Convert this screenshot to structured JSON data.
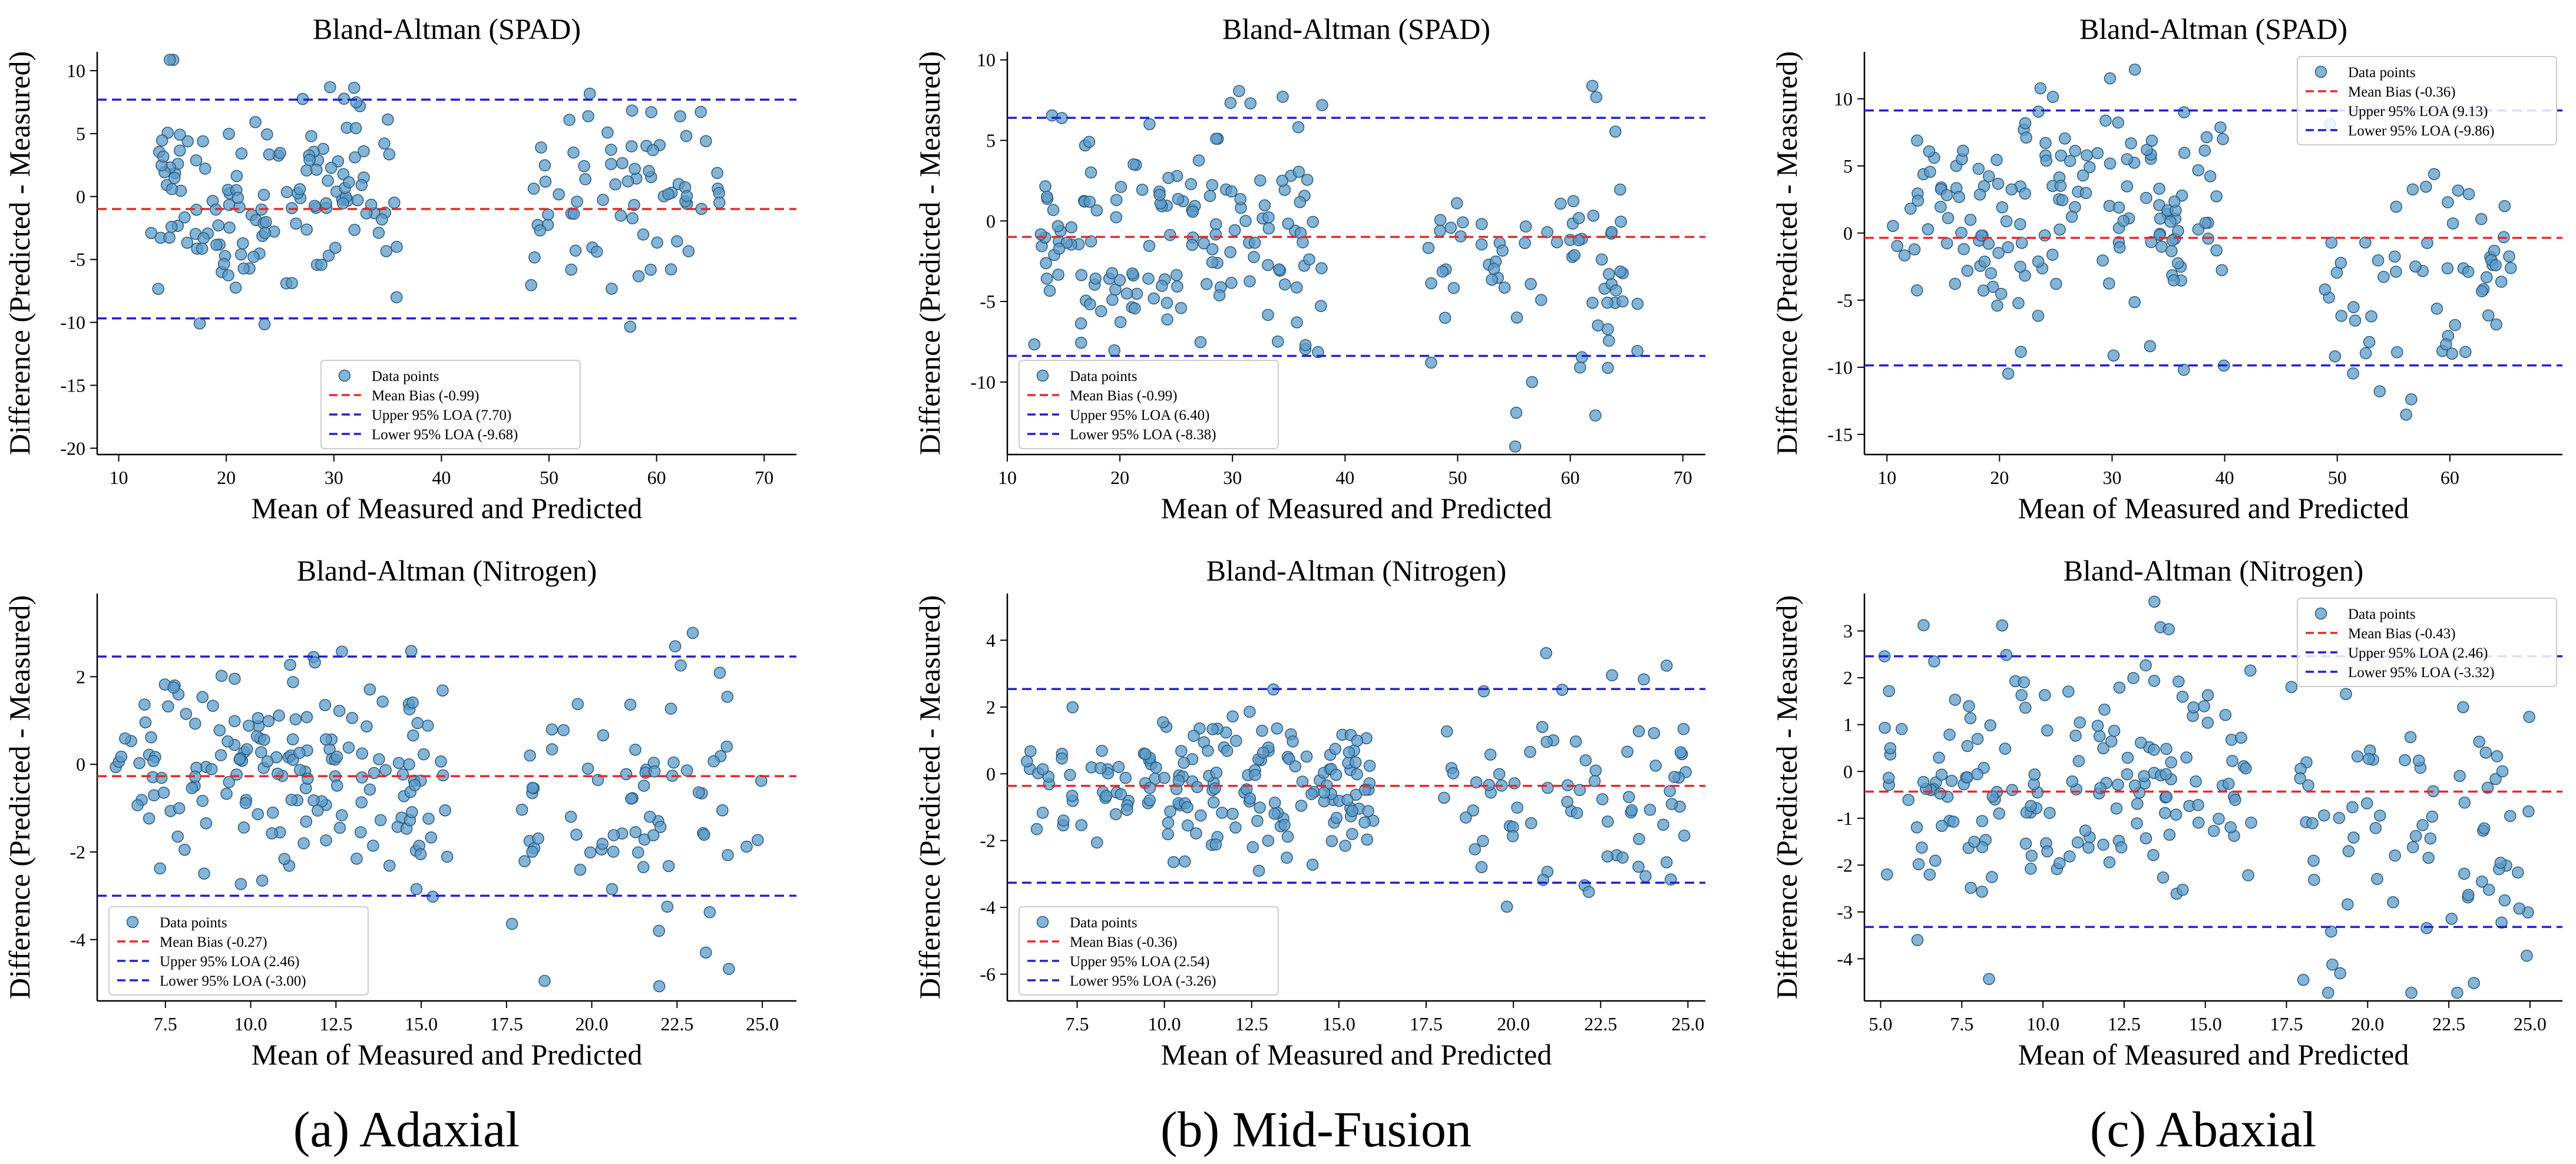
{
  "captions": [
    "(a) Adaxial",
    "(b) Mid-Fusion",
    "(c) Abaxial"
  ],
  "colors": {
    "points": "#5b9bc8",
    "point_edge": "#2a5a80",
    "mean": "#e8282b",
    "loa": "#1f1fd6"
  },
  "chart_data": [
    {
      "type": "scatter",
      "title": "Bland-Altman (SPAD)",
      "xlabel": "Mean of Measured and Predicted",
      "ylabel": "Difference (Predicted - Measured)",
      "xlim": [
        8,
        73
      ],
      "ylim": [
        -20.5,
        11.5
      ],
      "xticks": [
        10,
        20,
        30,
        40,
        50,
        60,
        70
      ],
      "xtick_labels": [
        "10",
        "20",
        "30",
        "40",
        "50",
        "60",
        "70"
      ],
      "yticks": [
        -20,
        -15,
        -10,
        -5,
        0,
        5,
        10
      ],
      "ytick_labels": [
        "-20",
        "-15",
        "-10",
        "-5",
        "0",
        "5",
        "10"
      ],
      "mean": -0.99,
      "upper": 7.7,
      "lower": -9.68,
      "legend_pos": "bottom-center",
      "legend": [
        "Data points",
        "Mean Bias (-0.99)",
        "Upper 95% LOA (7.70)",
        "Lower 95% LOA (-9.68)"
      ],
      "clusters": [
        [
          13,
          36,
          140,
          0,
          4
        ],
        [
          48,
          66,
          70,
          0,
          4.5
        ]
      ],
      "seed": 11,
      "n": 210,
      "sd": 4.3
    },
    {
      "type": "scatter",
      "title": "Bland-Altman (SPAD)",
      "xlabel": "Mean of Measured and Predicted",
      "ylabel": "Difference (Predicted - Measured)",
      "xlim": [
        10,
        72
      ],
      "ylim": [
        -14.5,
        10.5
      ],
      "xticks": [
        10,
        20,
        30,
        40,
        50,
        60,
        70
      ],
      "xtick_labels": [
        "10",
        "20",
        "30",
        "40",
        "50",
        "60",
        "70"
      ],
      "yticks": [
        -10,
        -5,
        0,
        5,
        10
      ],
      "ytick_labels": [
        "-10",
        "-5",
        "0",
        "5",
        "10"
      ],
      "mean": -0.99,
      "upper": 6.4,
      "lower": -8.38,
      "legend_pos": "bottom-left",
      "legend": [
        "Data points",
        "Mean Bias (-0.99)",
        "Upper 95% LOA (6.40)",
        "Lower 95% LOA (-8.38)"
      ],
      "clusters": [
        [
          12,
          38,
          150,
          -0.5,
          3.4
        ],
        [
          47,
          66,
          70,
          -2,
          4
        ]
      ],
      "seed": 23,
      "n": 220,
      "sd": 3.8
    },
    {
      "type": "scatter",
      "title": "Bland-Altman (SPAD)",
      "xlabel": "Mean of Measured and Predicted",
      "ylabel": "Difference (Predicted - Measured)",
      "xlim": [
        8,
        70
      ],
      "ylim": [
        -16.5,
        13.5
      ],
      "xticks": [
        10,
        20,
        30,
        40,
        50,
        60
      ],
      "xtick_labels": [
        "10",
        "20",
        "30",
        "40",
        "50",
        "60"
      ],
      "yticks": [
        -15,
        -10,
        -5,
        0,
        5,
        10
      ],
      "ytick_labels": [
        "-15",
        "-10",
        "-5",
        "0",
        "5",
        "10"
      ],
      "mean": -0.36,
      "upper": 9.13,
      "lower": -9.86,
      "legend_pos": "top-right",
      "legend": [
        "Data points",
        "Mean Bias (-0.36)",
        "Upper 95% LOA (9.13)",
        "Lower 95% LOA (-9.86)"
      ],
      "clusters": [
        [
          10,
          40,
          160,
          1,
          4.6
        ],
        [
          48,
          66,
          60,
          -4,
          4
        ]
      ],
      "seed": 37,
      "n": 220,
      "sd": 4.5
    },
    {
      "type": "scatter",
      "title": "Bland-Altman (Nitrogen)",
      "xlabel": "Mean of Measured and Predicted",
      "ylabel": "Difference (Predicted - Measured)",
      "xlim": [
        5.5,
        26
      ],
      "ylim": [
        -5.4,
        3.9
      ],
      "xticks": [
        7.5,
        10.0,
        12.5,
        15.0,
        17.5,
        20.0,
        22.5,
        25.0
      ],
      "xtick_labels": [
        "7.5",
        "10.0",
        "12.5",
        "15.0",
        "17.5",
        "20.0",
        "22.5",
        "25.0"
      ],
      "yticks": [
        -4,
        -2,
        0,
        2
      ],
      "ytick_labels": [
        "-4",
        "-2",
        "0",
        "2"
      ],
      "mean": -0.27,
      "upper": 2.46,
      "lower": -3.0,
      "legend_pos": "bottom-left",
      "legend": [
        "Data points",
        "Mean Bias (-0.27)",
        "Upper 95% LOA (2.46)",
        "Lower 95% LOA (-3.00)"
      ],
      "clusters": [
        [
          6,
          15.8,
          170,
          -0.1,
          1.2
        ],
        [
          17.5,
          25,
          75,
          -0.8,
          1.6
        ]
      ],
      "seed": 5,
      "n": 245,
      "sd": 1.4
    },
    {
      "type": "scatter",
      "title": "Bland-Altman (Nitrogen)",
      "xlabel": "Mean of Measured and Predicted",
      "ylabel": "Difference (Predicted - Measured)",
      "xlim": [
        5.5,
        25.5
      ],
      "ylim": [
        -6.8,
        5.4
      ],
      "xticks": [
        7.5,
        10.0,
        12.5,
        15.0,
        17.5,
        20.0,
        22.5,
        25.0
      ],
      "xtick_labels": [
        "7.5",
        "10.0",
        "12.5",
        "15.0",
        "17.5",
        "20.0",
        "22.5",
        "25.0"
      ],
      "yticks": [
        -6,
        -4,
        -2,
        0,
        2,
        4
      ],
      "ytick_labels": [
        "-6",
        "-4",
        "-2",
        "0",
        "2",
        "4"
      ],
      "mean": -0.36,
      "upper": 2.54,
      "lower": -3.26,
      "legend_pos": "bottom-left",
      "legend": [
        "Data points",
        "Mean Bias (-0.36)",
        "Upper 95% LOA (2.54)",
        "Lower 95% LOA (-3.26)"
      ],
      "clusters": [
        [
          6,
          16,
          175,
          -0.2,
          1.1
        ],
        [
          18,
          25,
          75,
          -0.8,
          1.7
        ]
      ],
      "seed": 61,
      "n": 250,
      "sd": 1.5
    },
    {
      "type": "scatter",
      "title": "Bland-Altman (Nitrogen)",
      "xlabel": "Mean of Measured and Predicted",
      "ylabel": "Difference (Predicted - Measured)",
      "xlim": [
        4.5,
        26
      ],
      "ylim": [
        -4.9,
        3.8
      ],
      "xticks": [
        5.0,
        7.5,
        10.0,
        12.5,
        15.0,
        17.5,
        20.0,
        22.5,
        25.0
      ],
      "xtick_labels": [
        "5.0",
        "7.5",
        "10.0",
        "12.5",
        "15.0",
        "17.5",
        "20.0",
        "22.5",
        "25.0"
      ],
      "yticks": [
        -4,
        -3,
        -2,
        -1,
        0,
        1,
        2,
        3
      ],
      "ytick_labels": [
        "-4",
        "-3",
        "-2",
        "-1",
        "0",
        "1",
        "2",
        "3"
      ],
      "mean": -0.43,
      "upper": 2.46,
      "lower": -3.32,
      "legend_pos": "top-right",
      "legend": [
        "Data points",
        "Mean Bias (-0.43)",
        "Upper 95% LOA (2.46)",
        "Lower 95% LOA (-3.32)"
      ],
      "clusters": [
        [
          5,
          16.5,
          170,
          -0.1,
          1.3
        ],
        [
          17.5,
          25,
          75,
          -1.2,
          1.6
        ]
      ],
      "seed": 83,
      "n": 245,
      "sd": 1.45
    }
  ]
}
